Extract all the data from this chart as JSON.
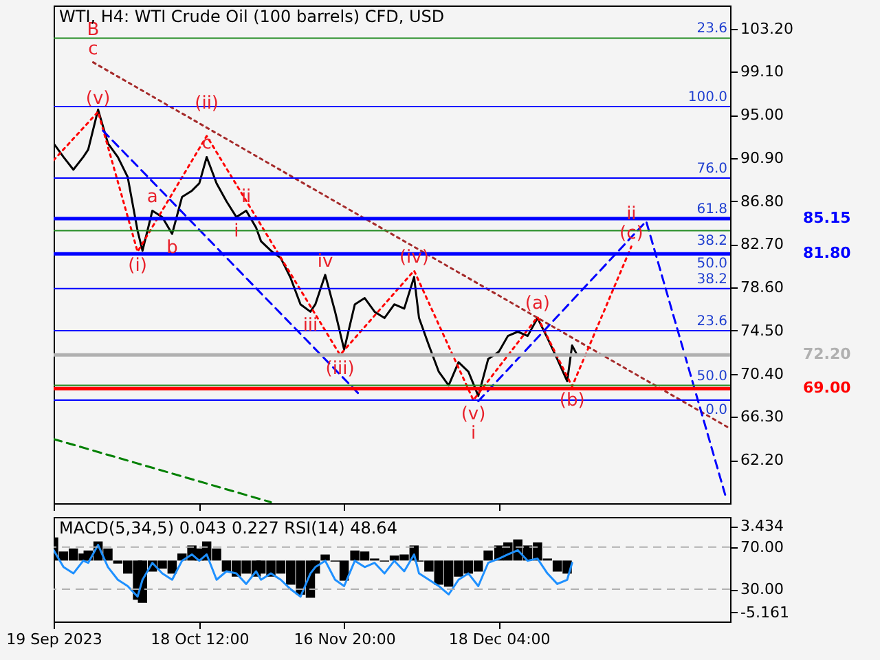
{
  "chart_data": [
    {
      "type": "line",
      "title": "WTI, H4:  WTI Crude Oil (100 barrels) CFD, USD",
      "xlim": [
        "2023-09-19",
        "2024-02-03"
      ],
      "xticks": [
        {
          "value": "2023-09-19",
          "label": null
        },
        {
          "value": "2023-10-18T12:00",
          "label": null
        },
        {
          "value": "2023-11-16T20:00",
          "label": null
        },
        {
          "value": "2023-12-18T04:00",
          "label": null
        }
      ],
      "tick_labels": "y",
      "ylim": [
        58.1,
        105.4
      ],
      "yticks": [
        {
          "value": 103.2,
          "label": "103.20"
        },
        {
          "value": 99.1,
          "label": "99.10"
        },
        {
          "value": 95,
          "label": "95.00"
        },
        {
          "value": 90.9,
          "label": "90.90"
        },
        {
          "value": 86.8,
          "label": "86.80"
        },
        {
          "value": 82.7,
          "label": "82.70"
        },
        {
          "value": 78.6,
          "label": "78.60"
        },
        {
          "value": 74.5,
          "label": "74.50"
        },
        {
          "value": 70.4,
          "label": "70.40"
        },
        {
          "value": 66.3,
          "label": "66.30"
        },
        {
          "value": 62.2,
          "label": "62.20"
        }
      ],
      "series": [
        {
          "color": "#000000",
          "x": [
            "2023-09-19",
            "2023-09-21",
            "2023-09-23",
            "2023-09-25",
            "2023-09-26",
            "2023-09-28",
            "2023-09-30",
            "2023-10-02",
            "2023-10-04",
            "2023-10-06",
            "2023-10-07",
            "2023-10-09",
            "2023-10-11",
            "2023-10-13",
            "2023-10-15",
            "2023-10-17",
            "2023-10-18T12:00",
            "2023-10-20",
            "2023-10-22",
            "2023-10-24",
            "2023-10-26",
            "2023-10-28",
            "2023-10-30",
            "2023-10-31",
            "2023-11-02",
            "2023-11-04",
            "2023-11-06",
            "2023-11-08",
            "2023-11-10",
            "2023-11-11",
            "2023-11-13",
            "2023-11-15",
            "2023-11-16T20:00",
            "2023-11-19",
            "2023-11-21",
            "2023-11-23",
            "2023-11-25",
            "2023-11-27",
            "2023-11-29",
            "2023-12-01",
            "2023-12-02",
            "2023-12-04",
            "2023-12-06",
            "2023-12-08",
            "2023-12-10",
            "2023-12-12",
            "2023-12-14",
            "2023-12-16",
            "2023-12-18T04:00",
            "2023-12-20",
            "2023-12-22",
            "2023-12-24",
            "2023-12-26",
            "2023-12-28",
            "2023-12-30",
            "2024-01-01",
            "2024-01-02",
            "2024-01-03"
          ],
          "values": [
            92.3,
            91.0,
            89.8,
            91.0,
            91.7,
            95.5,
            92.3,
            91.0,
            89.1,
            84.0,
            82.1,
            85.9,
            85.3,
            83.7,
            87.2,
            87.8,
            88.5,
            91.0,
            88.5,
            86.8,
            85.3,
            85.9,
            84.3,
            83.0,
            82.1,
            81.4,
            79.5,
            77.0,
            76.3,
            77.0,
            79.8,
            76.3,
            72.7,
            77.0,
            77.6,
            76.3,
            75.7,
            77.0,
            76.6,
            79.6,
            75.7,
            73.1,
            70.6,
            69.3,
            71.5,
            70.6,
            68.3,
            71.8,
            72.5,
            74.0,
            74.4,
            74.0,
            75.7,
            73.8,
            71.8,
            69.7,
            73.1,
            72.2
          ]
        },
        {
          "color": "#a52a2a",
          "line_style": "dotted",
          "x": [
            "2023-09-27",
            "2024-02-03"
          ],
          "values": [
            100.0,
            65.2
          ]
        },
        {
          "color": "#ff0000",
          "line_style": "dotted",
          "x": [
            "2023-09-19",
            "2023-09-28",
            "2023-10-06",
            "2023-10-20",
            "2023-11-16",
            "2023-12-01",
            "2023-12-13",
            "2023-12-26",
            "2024-01-02",
            "2024-01-14"
          ],
          "values": [
            90.7,
            95.3,
            82.0,
            93.0,
            72.2,
            80.2,
            67.9,
            75.8,
            69.2,
            82.5
          ]
        },
        {
          "color": "#0000ff",
          "line_style": "dashed",
          "x": [
            "2023-12-14",
            "2024-01-17",
            "2024-02-02"
          ],
          "values": [
            67.8,
            84.9,
            58.9
          ]
        },
        {
          "color": "#0000ff",
          "line_style": "dashed",
          "x": [
            "2023-09-29",
            "2023-11-20"
          ],
          "values": [
            93.5,
            68.4
          ]
        },
        {
          "color": "#008000",
          "line_style": "dashed",
          "x": [
            "2023-09-19",
            "2023-11-02"
          ],
          "values": [
            64.2,
            58.2
          ]
        }
      ],
      "ref_lines": [
        {
          "axis": "y",
          "value": 102.3,
          "color": "#228b22"
        },
        {
          "axis": "y",
          "value": 95.8,
          "color": "#0000ff"
        },
        {
          "axis": "y",
          "value": 89.0,
          "color": "#0000ff"
        },
        {
          "axis": "y",
          "value": 84.0,
          "color": "#228b22"
        },
        {
          "axis": "y",
          "value": 78.5,
          "color": "#0000ff"
        },
        {
          "axis": "y",
          "value": 74.5,
          "color": "#0000ff"
        },
        {
          "axis": "y",
          "value": 69.3,
          "color": "#228b22"
        },
        {
          "axis": "y",
          "value": 67.9,
          "color": "#0000ff"
        },
        {
          "axis": "y",
          "value": 85.15,
          "label": "85.15",
          "color": "#0000ff"
        },
        {
          "axis": "y",
          "value": 81.8,
          "label": "81.80",
          "color": "#0000ff"
        },
        {
          "axis": "y",
          "value": 72.2,
          "label": "72.20",
          "color": "#b0b0b0"
        },
        {
          "axis": "y",
          "value": 69.0,
          "label": "69.00",
          "color": "#ff0000"
        }
      ],
      "annotations": [
        {
          "text": "(v)",
          "x": "2023-09-28",
          "y": 95.3
        },
        {
          "text": "c",
          "x": "2023-09-27",
          "y": 100.0
        },
        {
          "text": "B",
          "x": "2023-09-27",
          "y": 100.0
        },
        {
          "text": "(i)",
          "x": "2023-10-06",
          "y": 82.0
        },
        {
          "text": "a",
          "x": "2023-10-09",
          "y": 85.9
        },
        {
          "text": "b",
          "x": "2023-10-13",
          "y": 83.7
        },
        {
          "text": "c",
          "x": "2023-10-20",
          "y": 91.0
        },
        {
          "text": "(ii)",
          "x": "2023-10-20",
          "y": 93.0
        },
        {
          "text": "i",
          "x": "2023-10-26",
          "y": 85.3
        },
        {
          "text": "ii",
          "x": "2023-10-28",
          "y": 85.9
        },
        {
          "text": "iii",
          "x": "2023-11-10",
          "y": 76.3
        },
        {
          "text": "iv",
          "x": "2023-11-13",
          "y": 79.8
        },
        {
          "text": "(iii)",
          "x": "2023-11-16",
          "y": 72.2
        },
        {
          "text": "(iv)",
          "x": "2023-12-01",
          "y": 80.2
        },
        {
          "text": "(v)",
          "x": "2023-12-13",
          "y": 67.9
        },
        {
          "text": "i",
          "x": "2023-12-13",
          "y": 67.9
        },
        {
          "text": "(a)",
          "x": "2023-12-26",
          "y": 75.8
        },
        {
          "text": "(b)",
          "x": "2024-01-02",
          "y": 69.2
        },
        {
          "text": "(c)",
          "x": "2024-01-14",
          "y": 82.5
        },
        {
          "text": "ii",
          "x": "2024-01-14",
          "y": 82.5
        },
        {
          "text": "23.6",
          "x": "2024-02-03",
          "y": 102.3
        },
        {
          "text": "100.0",
          "x": "2024-02-03",
          "y": 95.8
        },
        {
          "text": "76.0",
          "x": "2024-02-03",
          "y": 89.0
        },
        {
          "text": "61.8",
          "x": "2024-02-03",
          "y": 85.15
        },
        {
          "text": "38.2",
          "x": "2024-02-03",
          "y": 84.0
        },
        {
          "text": "50.0",
          "x": "2024-02-03",
          "y": 81.8
        },
        {
          "text": "38.2",
          "x": "2024-02-03",
          "y": 78.5
        },
        {
          "text": "23.6",
          "x": "2024-02-03",
          "y": 74.5
        },
        {
          "text": "50.0",
          "x": "2024-02-03",
          "y": 69.3
        },
        {
          "text": "0.0",
          "x": "2024-02-03",
          "y": 67.9
        }
      ]
    },
    {
      "type": "bar",
      "title": "MACD(5,34,5) 0.043 0.227 RSI(14) 48.64",
      "xlim": [
        "2023-09-19",
        "2024-02-03"
      ],
      "xticks": [
        {
          "value": "2023-09-19",
          "label": "19 Sep 2023"
        },
        {
          "value": "2023-10-18T12:00",
          "label": "18 Oct 12:00"
        },
        {
          "value": "2023-11-16T20:00",
          "label": "16 Nov 20:00"
        },
        {
          "value": "2023-12-18T04:00",
          "label": "18 Dec 04:00"
        }
      ],
      "ylim": [
        -6.06,
        4.33
      ],
      "yticks": [
        3.434,
        -5.161
      ],
      "y2lim": [
        -0.6,
        98.5
      ],
      "y2ticks": [
        {
          "value": 70,
          "label": "70.00"
        },
        {
          "value": 30,
          "label": "30.00"
        }
      ],
      "series": [
        {
          "type": "bar",
          "color": "#000000",
          "x": [
            "2023-09-19",
            "2023-09-21",
            "2023-09-23",
            "2023-09-25",
            "2023-09-26",
            "2023-09-28",
            "2023-09-30",
            "2023-10-02",
            "2023-10-04",
            "2023-10-06",
            "2023-10-07",
            "2023-10-09",
            "2023-10-11",
            "2023-10-13",
            "2023-10-15",
            "2023-10-17",
            "2023-10-18T12:00",
            "2023-10-20",
            "2023-10-22",
            "2023-10-24",
            "2023-10-26",
            "2023-10-28",
            "2023-10-30",
            "2023-10-31",
            "2023-11-02",
            "2023-11-04",
            "2023-11-06",
            "2023-11-08",
            "2023-11-10",
            "2023-11-11",
            "2023-11-13",
            "2023-11-15",
            "2023-11-16T20:00",
            "2023-11-19",
            "2023-11-21",
            "2023-11-23",
            "2023-11-25",
            "2023-11-27",
            "2023-11-29",
            "2023-12-01",
            "2023-12-02",
            "2023-12-04",
            "2023-12-06",
            "2023-12-08",
            "2023-12-10",
            "2023-12-12",
            "2023-12-14",
            "2023-12-16",
            "2023-12-18T04:00",
            "2023-12-20",
            "2023-12-22",
            "2023-12-24",
            "2023-12-26",
            "2023-12-28",
            "2023-12-30",
            "2024-01-01",
            "2024-01-02"
          ],
          "values": [
            2.3,
            0.9,
            1.2,
            0.7,
            1.0,
            1.9,
            1.2,
            -0.3,
            -1.3,
            -3.9,
            -4.2,
            -1.1,
            -0.8,
            -1.3,
            0.7,
            1.5,
            1.2,
            1.9,
            1.2,
            -1.1,
            -1.6,
            -1.3,
            -1.6,
            -1.3,
            -1.6,
            -1.3,
            -2.4,
            -3.4,
            -3.7,
            -1.3,
            0.6,
            -0.1,
            -2.0,
            1.0,
            0.9,
            0.2,
            -0.1,
            0.5,
            0.6,
            1.5,
            -0.1,
            -1.1,
            -2.4,
            -2.6,
            -1.6,
            -1.3,
            -1.1,
            1.0,
            1.5,
            1.8,
            2.1,
            1.5,
            1.8,
            0.2,
            -1.1,
            -1.3,
            0.0
          ]
        },
        {
          "type": "line",
          "axis": "y2",
          "color": "#1e90ff",
          "x": [
            "2023-09-19",
            "2023-09-21",
            "2023-09-23",
            "2023-09-25",
            "2023-09-26",
            "2023-09-28",
            "2023-09-30",
            "2023-10-02",
            "2023-10-04",
            "2023-10-06",
            "2023-10-07",
            "2023-10-09",
            "2023-10-11",
            "2023-10-13",
            "2023-10-15",
            "2023-10-17",
            "2023-10-18T12:00",
            "2023-10-20",
            "2023-10-22",
            "2023-10-24",
            "2023-10-26",
            "2023-10-28",
            "2023-10-30",
            "2023-10-31",
            "2023-11-02",
            "2023-11-04",
            "2023-11-06",
            "2023-11-08",
            "2023-11-10",
            "2023-11-11",
            "2023-11-13",
            "2023-11-15",
            "2023-11-16T20:00",
            "2023-11-19",
            "2023-11-21",
            "2023-11-23",
            "2023-11-25",
            "2023-11-27",
            "2023-11-29",
            "2023-12-01",
            "2023-12-02",
            "2023-12-04",
            "2023-12-06",
            "2023-12-08",
            "2023-12-10",
            "2023-12-12",
            "2023-12-14",
            "2023-12-16",
            "2023-12-18T04:00",
            "2023-12-20",
            "2023-12-22",
            "2023-12-24",
            "2023-12-26",
            "2023-12-28",
            "2023-12-30",
            "2024-01-01",
            "2024-01-02"
          ],
          "values": [
            67,
            51,
            45,
            57,
            55,
            72,
            51,
            39,
            33,
            23,
            39,
            55,
            45,
            39,
            57,
            63,
            57,
            63,
            39,
            47,
            45,
            35,
            47,
            39,
            45,
            39,
            30,
            23,
            45,
            51,
            57,
            39,
            33,
            57,
            51,
            55,
            45,
            57,
            47,
            63,
            45,
            39,
            33,
            25,
            39,
            45,
            33,
            55,
            59,
            63,
            67,
            57,
            59,
            45,
            35,
            39,
            55
          ]
        }
      ],
      "ref_lines": [
        {
          "axis": "y2",
          "value": 70,
          "color": "#b0b0b0",
          "line_style": "dashed"
        },
        {
          "axis": "y2",
          "value": 30,
          "color": "#b0b0b0",
          "line_style": "dashed"
        }
      ]
    }
  ]
}
